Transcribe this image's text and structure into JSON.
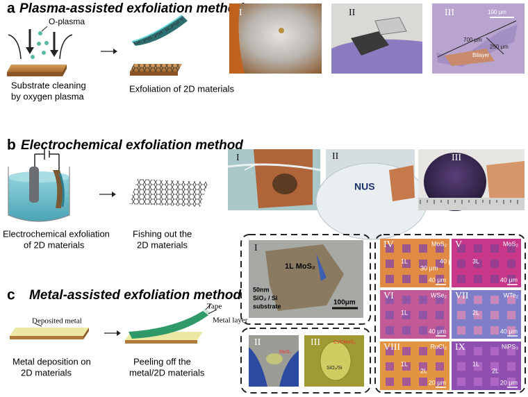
{
  "panel_a": {
    "letter": "a",
    "title": "Plasma-assisted exfoliation method",
    "plasma_label": "O-plasma",
    "step1": [
      "Substrate cleaning",
      "by oxygen plasma"
    ],
    "step2": [
      "Exfoliation of 2D materials"
    ],
    "photos": [
      {
        "label": "I"
      },
      {
        "label": "II"
      },
      {
        "label": "III",
        "texts": [
          "100 μm",
          "700 μm",
          "250 μm",
          "Bilayer"
        ]
      }
    ]
  },
  "panel_b": {
    "letter": "b",
    "title": "Electrochemical exfoliation method",
    "step1": [
      "Electrochemical exfoliation",
      "of 2D materials"
    ],
    "step2": [
      "Fishing out the",
      "2D materials"
    ],
    "photos": [
      {
        "label": "I"
      },
      {
        "label": "II",
        "texts": [
          "NUS"
        ]
      },
      {
        "label": "III"
      }
    ]
  },
  "panel_c": {
    "letter": "c",
    "title": "Metal-assisted exfoliation method",
    "labels": [
      "Deposited metal",
      "Tape",
      "Metal layer"
    ],
    "step1": [
      "Metal deposition on",
      "2D materials"
    ],
    "step2": [
      "Peeling off the",
      "metal/2D materials"
    ],
    "photos": [
      {
        "label": "I",
        "texts": [
          "1L MoS₂",
          "50nm",
          "SiO₂ / Si",
          "substrate",
          "100μm"
        ]
      },
      {
        "label": "II",
        "texts": [
          "MoS₂"
        ]
      },
      {
        "label": "III",
        "texts": [
          "CVDMoS₂",
          "SiO₂/Si"
        ]
      },
      {
        "label": "IV",
        "material": "MoS₂",
        "texts": [
          "1L",
          "30 μm",
          "40 μm"
        ],
        "scale": "40 μm"
      },
      {
        "label": "V",
        "material": "MoS₂",
        "texts": [
          "3L"
        ],
        "scale": "40 μm"
      },
      {
        "label": "VI",
        "material": "WSe₂",
        "texts": [
          "1L"
        ],
        "scale": "40 μm"
      },
      {
        "label": "VII",
        "material": "WTe₂",
        "texts": [
          "2L"
        ],
        "scale": "40 μm"
      },
      {
        "label": "VIII",
        "material": "RuCl₃",
        "texts": [
          "1L",
          "2L"
        ],
        "scale": "20 μm"
      },
      {
        "label": "IX",
        "material": "NiPS₃",
        "texts": [
          "1L",
          "2L"
        ],
        "scale": "20 μm"
      }
    ]
  }
}
